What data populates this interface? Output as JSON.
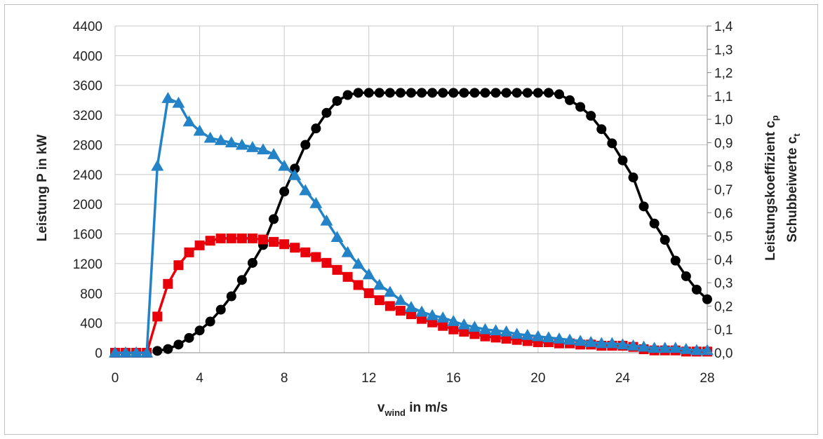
{
  "chart_data": {
    "type": "line",
    "xlabel": {
      "main": "v",
      "sub": "wind",
      "rest": " in m/s"
    },
    "ylabel_left": "Leistung P in kW",
    "ylabel_right_1": {
      "main": "Leistungskoeffizient  c",
      "sub": "p"
    },
    "ylabel_right_2": {
      "main": "Schubbeiwerte c",
      "sub": "t"
    },
    "xlim": [
      0,
      28
    ],
    "ylim_left": [
      0,
      4400
    ],
    "ylim_right": [
      0,
      1.4
    ],
    "x_ticks": [
      "0",
      "4",
      "8",
      "12",
      "16",
      "20",
      "24",
      "28"
    ],
    "y_left_ticks": [
      "0",
      "400",
      "800",
      "1200",
      "1600",
      "2000",
      "2400",
      "2800",
      "3200",
      "3600",
      "4000",
      "4400"
    ],
    "y_right_ticks": [
      "0,0",
      "0,1",
      "0,2",
      "0,3",
      "0,4",
      "0,5",
      "0,6",
      "0,7",
      "0,8",
      "0,9",
      "1,0",
      "1,1",
      "1,2",
      "1,3",
      "1,4"
    ],
    "grid": true,
    "legend": "none",
    "series": [
      {
        "color": "#000000",
        "marker": "circle",
        "axis": "left",
        "x": [
          2,
          2.5,
          3,
          3.5,
          4,
          4.5,
          5,
          5.5,
          6,
          6.5,
          7,
          7.5,
          8,
          8.5,
          9,
          9.5,
          10,
          10.5,
          11,
          11.5,
          12,
          12.5,
          13,
          13.5,
          14,
          14.5,
          15,
          15.5,
          16,
          16.5,
          17,
          17.5,
          18,
          18.5,
          19,
          19.5,
          20,
          20.5,
          21,
          21.5,
          22,
          22.5,
          23,
          23.5,
          24,
          24.5,
          25,
          25.5,
          26,
          26.5,
          27,
          27.5,
          28
        ],
        "y": [
          25,
          50,
          110,
          200,
          300,
          420,
          580,
          760,
          980,
          1210,
          1450,
          1800,
          2170,
          2480,
          2800,
          3020,
          3230,
          3390,
          3470,
          3500,
          3500,
          3500,
          3500,
          3500,
          3500,
          3500,
          3500,
          3500,
          3500,
          3500,
          3500,
          3500,
          3500,
          3500,
          3500,
          3500,
          3500,
          3500,
          3480,
          3400,
          3310,
          3190,
          3010,
          2820,
          2590,
          2360,
          1970,
          1740,
          1520,
          1240,
          1030,
          850,
          720
        ]
      },
      {
        "color": "#e8000b",
        "marker": "square",
        "axis": "right",
        "x": [
          0,
          0.5,
          1,
          1.5,
          2,
          2.5,
          3,
          3.5,
          4,
          4.5,
          5,
          5.5,
          6,
          6.5,
          7,
          7.5,
          8,
          8.5,
          9,
          9.5,
          10,
          10.5,
          11,
          11.5,
          12,
          12.5,
          13,
          13.5,
          14,
          14.5,
          15,
          15.5,
          16,
          16.5,
          17,
          17.5,
          18,
          18.5,
          19,
          19.5,
          20,
          20.5,
          21,
          21.5,
          22,
          22.5,
          23,
          23.5,
          24,
          24.5,
          25,
          25.5,
          26,
          26.5,
          27,
          27.5,
          28
        ],
        "y": [
          0,
          0,
          0,
          0,
          0.155,
          0.295,
          0.375,
          0.43,
          0.46,
          0.48,
          0.49,
          0.49,
          0.49,
          0.49,
          0.485,
          0.475,
          0.465,
          0.45,
          0.43,
          0.41,
          0.385,
          0.355,
          0.325,
          0.29,
          0.255,
          0.225,
          0.2,
          0.18,
          0.165,
          0.145,
          0.13,
          0.115,
          0.1,
          0.09,
          0.08,
          0.07,
          0.065,
          0.06,
          0.055,
          0.05,
          0.045,
          0.045,
          0.04,
          0.04,
          0.035,
          0.035,
          0.03,
          0.03,
          0.03,
          0.025,
          0.015,
          0.01,
          0.01,
          0.01,
          0.005,
          0.005,
          0.005
        ]
      },
      {
        "color": "#2383c6",
        "marker": "triangle",
        "axis": "right",
        "x": [
          0,
          0.5,
          1,
          1.5,
          2,
          2.5,
          3,
          3.5,
          4,
          4.5,
          5,
          5.5,
          6,
          6.5,
          7,
          7.5,
          8,
          8.5,
          9,
          9.5,
          10,
          10.5,
          11,
          11.5,
          12,
          12.5,
          13,
          13.5,
          14,
          14.5,
          15,
          15.5,
          16,
          16.5,
          17,
          17.5,
          18,
          18.5,
          19,
          19.5,
          20,
          20.5,
          21,
          21.5,
          22,
          22.5,
          23,
          23.5,
          24,
          24.5,
          25,
          25.5,
          26,
          26.5,
          27,
          27.5,
          28
        ],
        "y": [
          0,
          0,
          0,
          0,
          0.8,
          1.09,
          1.07,
          0.99,
          0.95,
          0.92,
          0.91,
          0.9,
          0.89,
          0.88,
          0.87,
          0.85,
          0.8,
          0.76,
          0.695,
          0.64,
          0.565,
          0.495,
          0.43,
          0.38,
          0.335,
          0.29,
          0.26,
          0.225,
          0.195,
          0.175,
          0.16,
          0.15,
          0.135,
          0.12,
          0.11,
          0.1,
          0.095,
          0.09,
          0.08,
          0.075,
          0.07,
          0.065,
          0.06,
          0.055,
          0.05,
          0.045,
          0.04,
          0.04,
          0.035,
          0.03,
          0.025,
          0.02,
          0.02,
          0.02,
          0.015,
          0.01,
          0.01
        ]
      }
    ]
  }
}
